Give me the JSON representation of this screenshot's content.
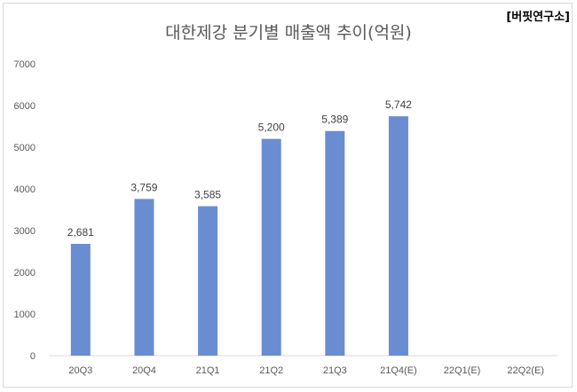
{
  "header": {
    "source": "[버핏연구소]"
  },
  "chart_data": {
    "type": "bar",
    "title": "대한제강 분기별 매출액 추이(억원)",
    "categories": [
      "20Q3",
      "20Q4",
      "21Q1",
      "21Q2",
      "21Q3",
      "21Q4(E)",
      "22Q1(E)",
      "22Q2(E)"
    ],
    "values": [
      2681,
      3759,
      3585,
      5200,
      5389,
      5742,
      null,
      null
    ],
    "data_labels": [
      "2,681",
      "3,759",
      "3,585",
      "5,200",
      "5,389",
      "5,742",
      "",
      ""
    ],
    "y_ticks": [
      "0",
      "1000",
      "2000",
      "3000",
      "4000",
      "5000",
      "6000",
      "7000"
    ],
    "ylim": [
      0,
      7000
    ],
    "bar_color": "#6a8dd1",
    "grid": false,
    "legend": "none"
  }
}
